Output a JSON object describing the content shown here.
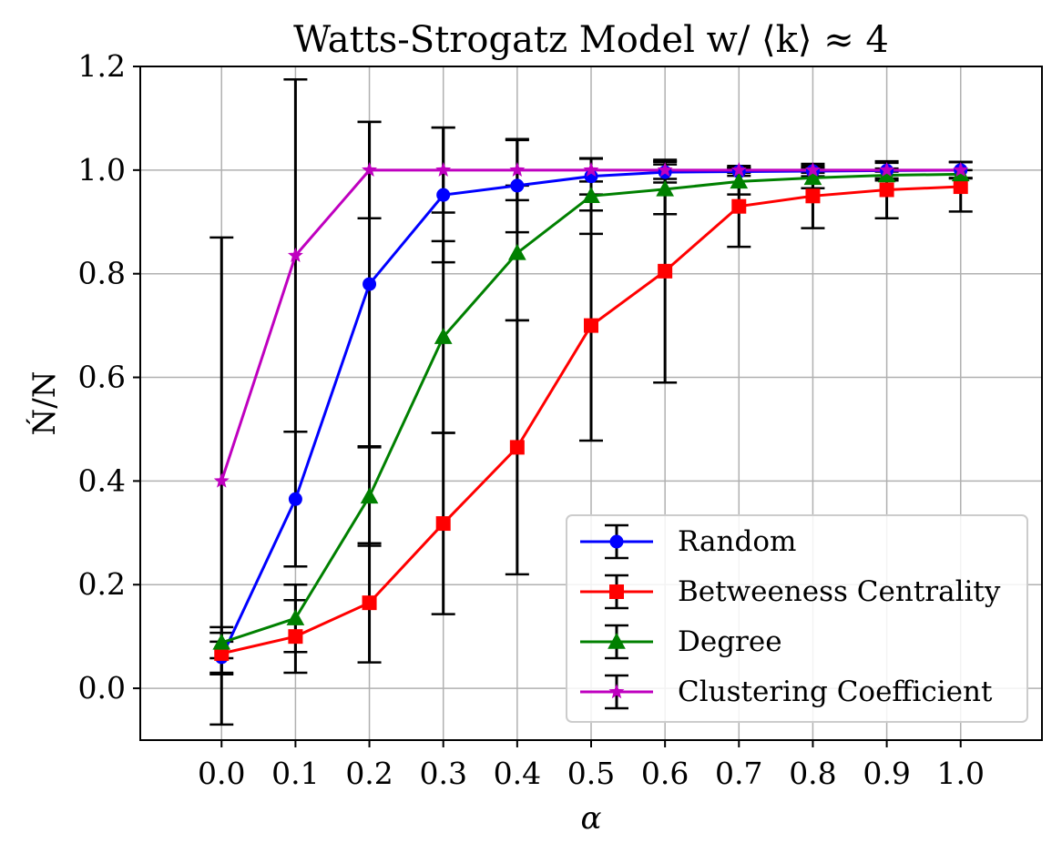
{
  "chart_data": {
    "type": "line",
    "title": "Watts-Strogatz Model w/ ⟨k⟩ ≈ 4",
    "xlabel": "α",
    "ylabel": "Ń/N",
    "x": [
      0.0,
      0.1,
      0.2,
      0.3,
      0.4,
      0.5,
      0.6,
      0.7,
      0.8,
      0.9,
      1.0
    ],
    "xticks": [
      "0.0",
      "0.1",
      "0.2",
      "0.3",
      "0.4",
      "0.5",
      "0.6",
      "0.7",
      "0.8",
      "0.9",
      "1.0"
    ],
    "yticks": [
      "0.0",
      "0.2",
      "0.4",
      "0.6",
      "0.8",
      "1.0",
      "1.2"
    ],
    "xlim": [
      -0.11,
      1.11
    ],
    "ylim": [
      -0.1,
      1.2
    ],
    "grid": true,
    "legend_position": "lower-right",
    "error_bar_color": "#000000",
    "series": [
      {
        "name": "Random",
        "color": "#0000ff",
        "marker": "circle",
        "values": [
          0.06,
          0.365,
          0.78,
          0.952,
          0.97,
          0.988,
          0.996,
          0.997,
          0.998,
          0.999,
          1.0
        ],
        "errors": [
          0.03,
          0.13,
          0.313,
          0.13,
          0.09,
          0.035,
          0.02,
          0.008,
          0.01,
          0.015,
          0.015
        ]
      },
      {
        "name": "Betweeness Centrality",
        "color": "#ff0000",
        "marker": "square",
        "values": [
          0.067,
          0.1,
          0.165,
          0.318,
          0.465,
          0.7,
          0.805,
          0.93,
          0.95,
          0.962,
          0.968
        ],
        "errors": [
          0.04,
          0.07,
          0.115,
          0.175,
          0.245,
          0.222,
          0.215,
          0.078,
          0.062,
          0.055,
          0.048
        ]
      },
      {
        "name": "Degree",
        "color": "#008000",
        "marker": "triangle",
        "values": [
          0.088,
          0.135,
          0.37,
          0.678,
          0.84,
          0.95,
          0.963,
          0.978,
          0.985,
          0.99,
          0.992
        ],
        "errors": [
          0.03,
          0.065,
          0.095,
          0.185,
          0.13,
          0.073,
          0.048,
          0.025,
          0.02,
          0.01,
          0.008
        ]
      },
      {
        "name": "Clustering Coefficient",
        "color": "#bf00bf",
        "marker": "star",
        "values": [
          0.4,
          0.835,
          1.0,
          1.0,
          1.0,
          1.0,
          1.0,
          1.0,
          1.0,
          1.0,
          1.0
        ],
        "errors": [
          0.47,
          0.34,
          0.093,
          0.082,
          0.058,
          0.022,
          0.017,
          0.005,
          0.005,
          0.003,
          0.0
        ]
      }
    ]
  }
}
